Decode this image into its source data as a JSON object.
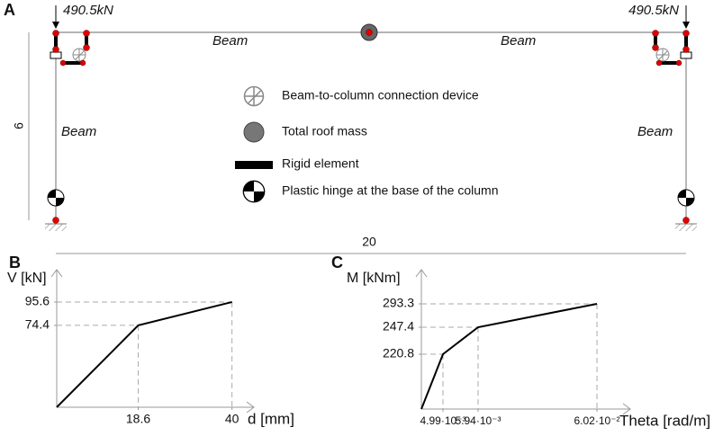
{
  "diagram": {
    "panel_label": "A",
    "loads": [
      "490.5kN",
      "490.5kN"
    ],
    "member_labels": [
      "Beam",
      "Beam",
      "Beam",
      "Beam"
    ],
    "height_dimension": 6,
    "span_dimension": 20,
    "legend": [
      "Beam-to-column connection device",
      "Total roof mass",
      "Rigid element",
      "Plastic hinge at the base of the column"
    ]
  },
  "chart_data": [
    {
      "type": "line",
      "panel_label": "B",
      "x_label": "d [mm]",
      "y_label": "V [kN]",
      "x": [
        0,
        18.6,
        40
      ],
      "values": [
        0,
        74.4,
        95.6
      ],
      "color": "#000000",
      "xlim": [
        0,
        45
      ],
      "ylim": [
        0,
        125
      ],
      "xticks": [
        18.6,
        40
      ],
      "yticks": [
        74.4,
        95.6
      ],
      "scale": "linear",
      "dashed_guides": true
    },
    {
      "type": "line",
      "panel_label": "C",
      "x_label": "Theta  [rad/m]",
      "y_label": "M [kNm]",
      "x": [
        0,
        0.00499,
        0.00594,
        0.0602
      ],
      "values": [
        0,
        220.8,
        247.4,
        293.3
      ],
      "color": "#000000",
      "xticks": [
        {
          "value": 0.00499,
          "label": "4.99·10⁻³"
        },
        {
          "value": 0.00594,
          "label": "5.94·10⁻³"
        },
        {
          "value": 0.0602,
          "label": "6.02·10⁻²"
        }
      ],
      "yticks": [
        220.8,
        247.4,
        293.3
      ],
      "scale": "schematic",
      "dashed_guides": true
    }
  ]
}
